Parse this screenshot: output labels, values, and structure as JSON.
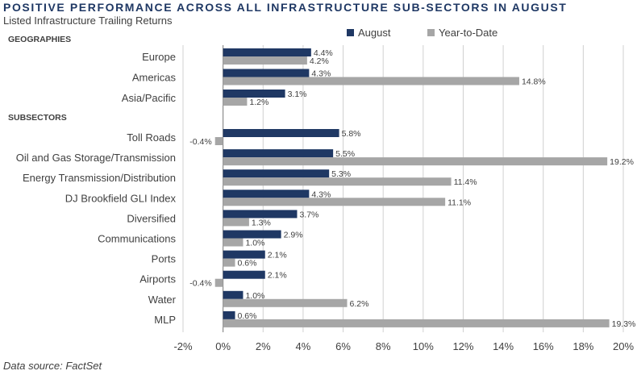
{
  "title": "POSITIVE PERFORMANCE ACROSS ALL INFRASTRUCTURE SUB-SECTORS IN AUGUST",
  "subtitle": "Listed Infrastructure Trailing Returns",
  "source": "Data source: FactSet",
  "colors": {
    "august": "#1f3864",
    "ytd": "#a6a6a6",
    "grid": "#d0d0d0",
    "text": "#404040",
    "title": "#1f3864"
  },
  "chart_data": {
    "type": "bar",
    "orientation": "horizontal",
    "xlim": [
      -2,
      20
    ],
    "x_ticks": [
      -2,
      0,
      2,
      4,
      6,
      8,
      10,
      12,
      14,
      16,
      18,
      20
    ],
    "tick_suffix": "%",
    "grid": true,
    "legend": {
      "position": "top-right",
      "entries": [
        "August",
        "Year-to-Date"
      ]
    },
    "groups": [
      {
        "label": "GEOGRAPHIES",
        "categories": [
          "Europe",
          "Americas",
          "Asia/Pacific"
        ],
        "series": [
          {
            "name": "August",
            "values": [
              4.4,
              4.3,
              3.1
            ],
            "labels": [
              "4.4%",
              "4.3%",
              "3.1%"
            ]
          },
          {
            "name": "Year-to-Date",
            "values": [
              4.2,
              14.8,
              1.2
            ],
            "labels": [
              "4.2%",
              "14.8%",
              "1.2%"
            ]
          }
        ]
      },
      {
        "label": "SUBSECTORS",
        "categories": [
          "Toll Roads",
          "Oil and Gas Storage/Transmission",
          "Energy Transmission/Distribution",
          "DJ Brookfield GLI Index",
          "Diversified",
          "Communications",
          "Ports",
          "Airports",
          "Water",
          "MLP"
        ],
        "series": [
          {
            "name": "August",
            "values": [
              5.8,
              5.5,
              5.3,
              4.3,
              3.7,
              2.9,
              2.1,
              2.1,
              1.0,
              0.6
            ],
            "labels": [
              "5.8%",
              "5.5%",
              "5.3%",
              "4.3%",
              "3.7%",
              "2.9%",
              "2.1%",
              "2.1%",
              "1.0%",
              "0.6%"
            ]
          },
          {
            "name": "Year-to-Date",
            "values": [
              -0.4,
              19.2,
              11.4,
              11.1,
              1.3,
              1.0,
              0.6,
              -0.4,
              6.2,
              19.3
            ],
            "labels": [
              "-0.4%",
              "19.2%",
              "11.4%",
              "11.1%",
              "1.3%",
              "1.0%",
              "0.6%",
              "-0.4%",
              "6.2%",
              "19.3%"
            ]
          }
        ]
      }
    ]
  }
}
